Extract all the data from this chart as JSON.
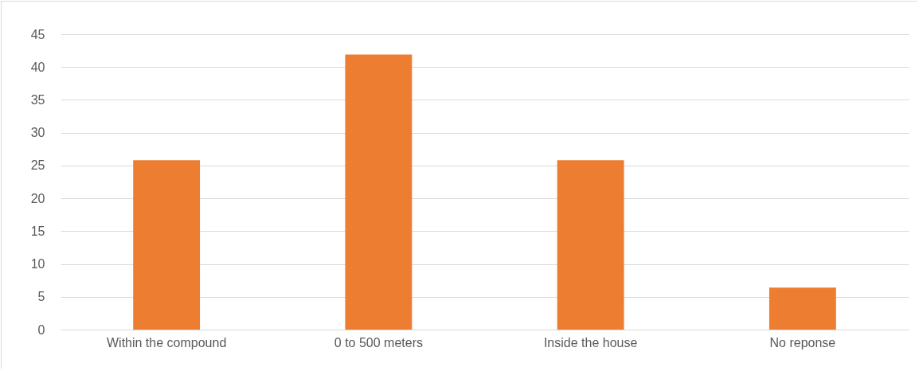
{
  "chart_data": {
    "type": "bar",
    "categories": [
      "Within the compound",
      "0 to 500 meters",
      "Inside the house",
      "No reponse"
    ],
    "values": [
      25.8,
      41.9,
      25.8,
      6.4
    ],
    "color": "#ed7d31",
    "ylim": [
      0,
      45
    ],
    "yticks": [
      0,
      5,
      10,
      15,
      20,
      25,
      30,
      35,
      40,
      45
    ],
    "grid": "y"
  }
}
